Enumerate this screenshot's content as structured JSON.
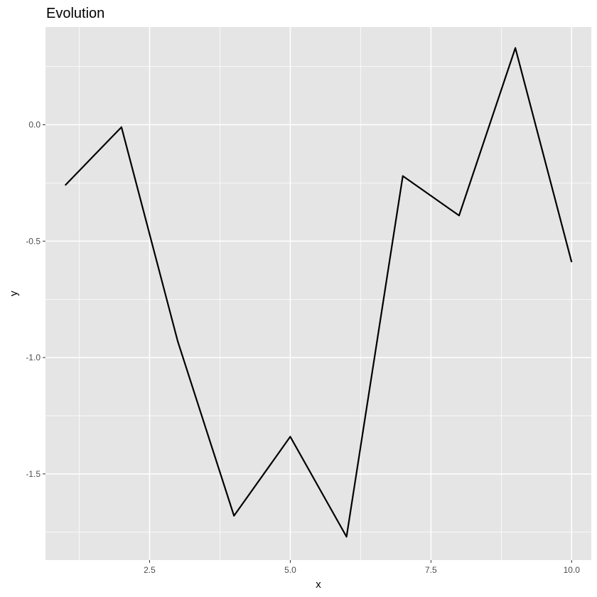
{
  "chart_data": {
    "type": "line",
    "title": "Evolution",
    "xlabel": "x",
    "ylabel": "y",
    "xlim": [
      0.65,
      10.35
    ],
    "ylim": [
      -1.87,
      0.42
    ],
    "x": [
      1,
      2,
      3,
      4,
      5,
      6,
      7,
      8,
      9,
      10
    ],
    "series": [
      {
        "values": [
          -0.26,
          -0.01,
          -0.93,
          -1.68,
          -1.34,
          -1.77,
          -0.22,
          -0.39,
          0.33,
          -0.59
        ]
      }
    ],
    "x_ticks": [
      2.5,
      5.0,
      7.5,
      10.0
    ],
    "x_tick_labels": [
      "2.5",
      "5.0",
      "7.5",
      "10.0"
    ],
    "y_ticks": [
      0.0,
      -0.5,
      -1.0,
      -1.5
    ],
    "y_tick_labels": [
      "0.0",
      "-0.5",
      "-1.0",
      "-1.5"
    ],
    "grid": true,
    "legend": "none",
    "colors": {
      "panel_background": "#e5e5e5",
      "grid": "#ffffff",
      "line": "#000000",
      "tick_text": "#4d4d4d",
      "tick_mark": "#333333"
    }
  }
}
